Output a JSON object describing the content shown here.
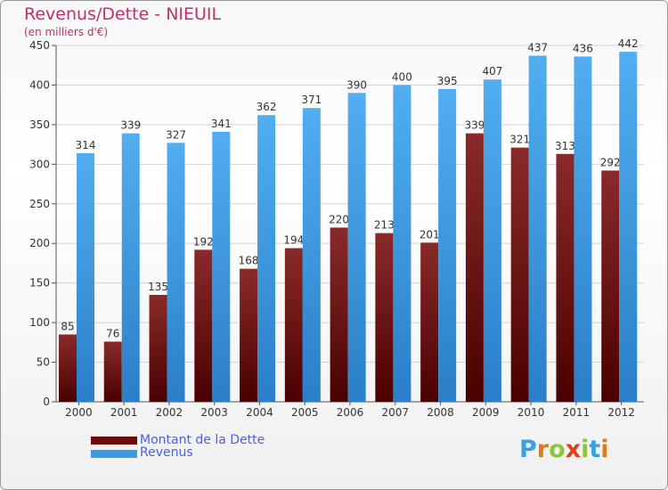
{
  "header": {
    "title": "Revenus/Dette - NIEUIL",
    "subtitle": "(en milliers d'€)"
  },
  "chart_data": {
    "type": "bar",
    "title": "Revenus/Dette - NIEUIL",
    "subtitle": "(en milliers d'€)",
    "xlabel": "",
    "ylabel": "",
    "categories": [
      "2000",
      "2001",
      "2002",
      "2003",
      "2004",
      "2005",
      "2006",
      "2007",
      "2008",
      "2009",
      "2010",
      "2011",
      "2012"
    ],
    "ylim": [
      0,
      450
    ],
    "yticks": [
      0,
      50,
      100,
      150,
      200,
      250,
      300,
      350,
      400,
      450
    ],
    "grid": true,
    "legend_position": "bottom-left",
    "series": [
      {
        "name": "Montant de la Dette",
        "color": "#7a1a1a",
        "values": [
          85,
          76,
          135,
          192,
          168,
          194,
          220,
          213,
          201,
          339,
          321,
          313,
          292
        ]
      },
      {
        "name": "Revenus",
        "color": "#3f9ae6",
        "values": [
          314,
          339,
          327,
          341,
          362,
          371,
          390,
          400,
          395,
          407,
          437,
          436,
          442
        ]
      }
    ]
  },
  "legend": {
    "items": [
      {
        "label": "Montant de la Dette",
        "color": "#6b0d0d"
      },
      {
        "label": "Revenus",
        "color": "#3f9ae6"
      }
    ]
  },
  "logo": {
    "letters": [
      "P",
      "r",
      "o",
      "x",
      "i",
      "t",
      "i"
    ],
    "colors": [
      "#3aa0e0",
      "#e07a1e",
      "#8cc63f",
      "#e0401e",
      "#8cc63f",
      "#3aa0e0",
      "#e07a1e"
    ]
  }
}
